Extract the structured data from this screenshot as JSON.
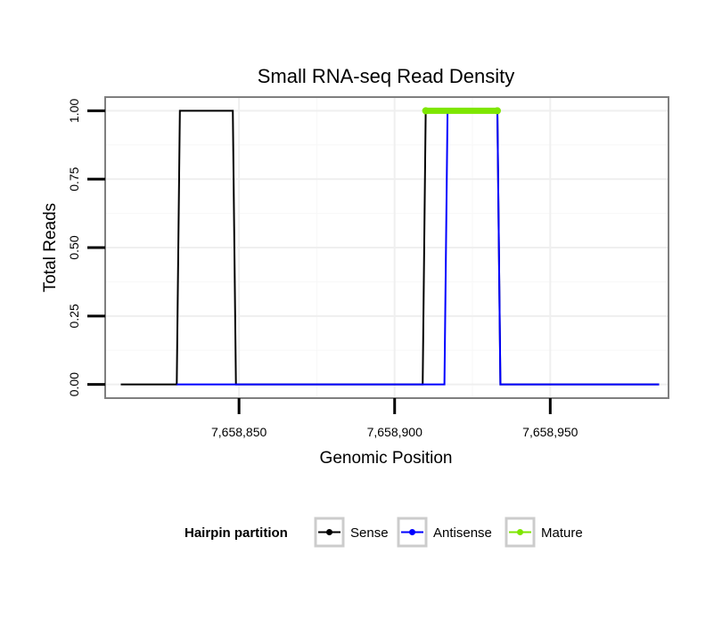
{
  "chart_data": {
    "type": "line",
    "title": "Small RNA-seq Read Density",
    "xlabel": "Genomic Position",
    "ylabel": "Total Reads",
    "xlim": [
      7658807,
      7658988
    ],
    "ylim": [
      -0.05,
      1.05
    ],
    "x_ticks": [
      7658850,
      7658900,
      7658950
    ],
    "x_tick_labels": [
      "7,658,850",
      "7,658,900",
      "7,658,950"
    ],
    "y_ticks": [
      0,
      0.25,
      0.5,
      0.75,
      1.0
    ],
    "y_tick_labels": [
      "0.00",
      "0.25",
      "0.50",
      "0.75",
      "1.00"
    ],
    "grid": true,
    "legend_position": "bottom",
    "legend_title": "Hairpin partition",
    "series": [
      {
        "name": "Sense",
        "color": "#000000",
        "x": [
          7658812,
          7658830,
          7658831,
          7658848,
          7658849,
          7658909,
          7658910,
          7658933,
          7658934,
          7658985
        ],
        "y": [
          0,
          0,
          1,
          1,
          0,
          0,
          1,
          1,
          0,
          0
        ]
      },
      {
        "name": "Antisense",
        "color": "#0000ff",
        "x": [
          7658830,
          7658916,
          7658917,
          7658933,
          7658934,
          7658985
        ],
        "y": [
          0,
          0,
          1,
          1,
          0,
          0
        ]
      },
      {
        "name": "Mature",
        "color": "#7ee600",
        "x": [
          7658910,
          7658933
        ],
        "y": [
          1,
          1
        ]
      }
    ]
  }
}
